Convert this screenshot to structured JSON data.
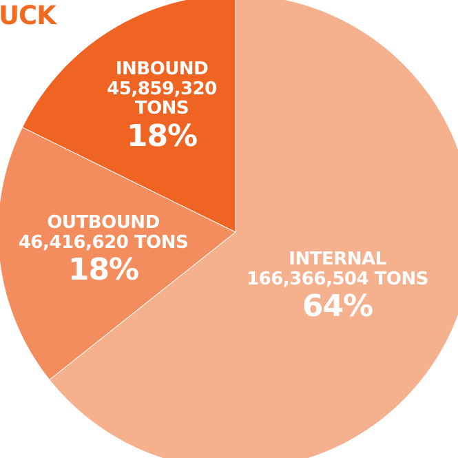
{
  "header": {
    "title_fragment": "UCK"
  },
  "colors": {
    "title": "#f26a22",
    "internal": "#f5b08e",
    "outbound": "#f48d5e",
    "inbound": "#f06423",
    "separator": "#ffffff",
    "label_text": "#ffffff"
  },
  "chart_data": {
    "type": "pie",
    "unit": "TONS",
    "slices": [
      {
        "label": "INTERNAL",
        "value": 166366504,
        "value_text": "166,366,504",
        "unit_text": "TONS",
        "percent": 64,
        "percent_text": "64%",
        "color": "#f5b08e"
      },
      {
        "label": "OUTBOUND",
        "value": 46416620,
        "value_text": "46,416,620",
        "unit_text": "TONS",
        "percent": 18,
        "percent_text": "18%",
        "color": "#f48d5e"
      },
      {
        "label": "INBOUND",
        "value": 45859320,
        "value_text": "45,859,320",
        "unit_text": "TONS",
        "percent": 18,
        "percent_text": "18%",
        "color": "#f06423"
      }
    ],
    "start_angle": "12 o'clock",
    "direction": "clockwise"
  }
}
